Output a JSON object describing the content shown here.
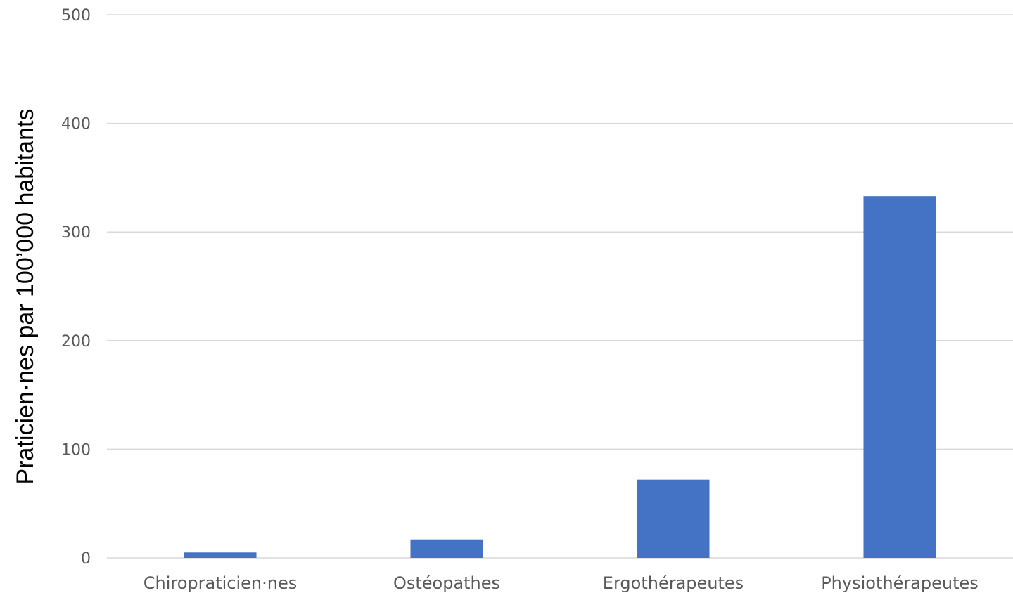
{
  "chart_data": {
    "type": "bar",
    "categories": [
      "Chiropraticien·nes",
      "Ostéopathes",
      "Ergothérapeutes",
      "Physiothérapeutes"
    ],
    "values": [
      5,
      17,
      72,
      333
    ],
    "title": "",
    "xlabel": "",
    "ylabel": "Praticien·nes par 100’000 habitants",
    "ylim": [
      0,
      500
    ],
    "yticks": [
      0,
      100,
      200,
      300,
      400,
      500
    ],
    "grid": true,
    "legend": "none",
    "bar_color": "#4472c4"
  }
}
